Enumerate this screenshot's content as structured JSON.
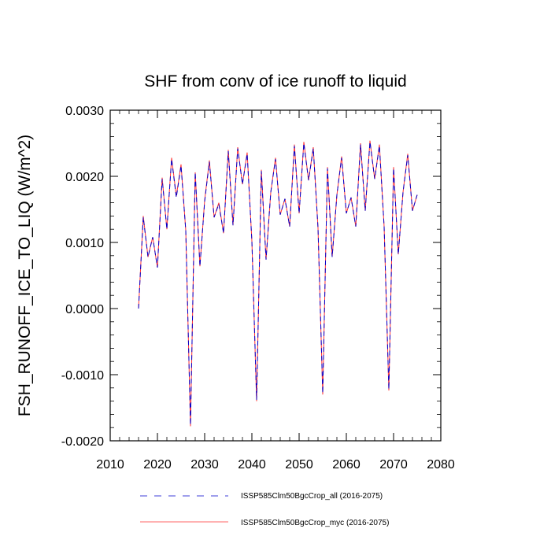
{
  "chart_data": {
    "type": "line",
    "title": "SHF from conv of ice runoff to liquid",
    "xlabel": "",
    "ylabel": "FSH_RUNOFF_ICE_TO_LIQ  (W/m^2)",
    "xlim": [
      2010,
      2080
    ],
    "ylim": [
      -0.002,
      0.003
    ],
    "x_ticks": [
      "2010",
      "2020",
      "2030",
      "2040",
      "2050",
      "2060",
      "2070",
      "2080"
    ],
    "y_ticks": [
      "-0.0020",
      "-0.0010",
      "0.0000",
      "0.0010",
      "0.0020",
      "0.0030"
    ],
    "grid": false,
    "legend_position": "bottom",
    "x": [
      2016,
      2017,
      2018,
      2019,
      2020,
      2021,
      2022,
      2023,
      2024,
      2025,
      2026,
      2027,
      2028,
      2029,
      2030,
      2031,
      2032,
      2033,
      2034,
      2035,
      2036,
      2037,
      2038,
      2039,
      2040,
      2041,
      2042,
      2043,
      2044,
      2045,
      2046,
      2047,
      2048,
      2049,
      2050,
      2051,
      2052,
      2053,
      2054,
      2055,
      2056,
      2057,
      2058,
      2059,
      2060,
      2061,
      2062,
      2063,
      2064,
      2065,
      2066,
      2067,
      2068,
      2069,
      2070,
      2071,
      2072,
      2073,
      2074,
      2075
    ],
    "series": [
      {
        "name": "ISSP585Clm50BgcCrop_all (2016-2075)",
        "color": "#0000cc",
        "dash": "dashed",
        "values": [
          0.0,
          0.00138,
          0.00078,
          0.00108,
          0.00062,
          0.00196,
          0.0012,
          0.00226,
          0.00168,
          0.00216,
          0.00118,
          -0.00176,
          0.00206,
          0.00064,
          0.00162,
          0.00222,
          0.00138,
          0.00158,
          0.00114,
          0.00238,
          0.00126,
          0.00242,
          0.00188,
          0.00234,
          0.00102,
          -0.00138,
          0.00208,
          0.00074,
          0.00176,
          0.00226,
          0.00142,
          0.00166,
          0.00124,
          0.00246,
          0.00144,
          0.0025,
          0.00194,
          0.00242,
          0.00122,
          -0.00128,
          0.00212,
          0.00078,
          0.00172,
          0.00228,
          0.00144,
          0.00168,
          0.00124,
          0.00248,
          0.00148,
          0.00252,
          0.00196,
          0.00246,
          0.00124,
          -0.00122,
          0.00212,
          0.00082,
          0.00176,
          0.00232,
          0.00148,
          0.00172
        ]
      },
      {
        "name": "ISSP585Clm50BgcCrop_myc (2016-2075)",
        "color": "#ff3333",
        "dash": "solid",
        "values": [
          0.0,
          0.0014,
          0.00078,
          0.00108,
          0.00062,
          0.00198,
          0.0012,
          0.00228,
          0.0017,
          0.00218,
          0.00118,
          -0.00178,
          0.00206,
          0.00064,
          0.00164,
          0.00224,
          0.00138,
          0.0016,
          0.00114,
          0.0024,
          0.00126,
          0.00244,
          0.00188,
          0.00236,
          0.00102,
          -0.0014,
          0.0021,
          0.00074,
          0.00176,
          0.00228,
          0.00142,
          0.00166,
          0.00124,
          0.00248,
          0.00144,
          0.00252,
          0.00194,
          0.00244,
          0.00122,
          -0.0013,
          0.00214,
          0.00078,
          0.00172,
          0.0023,
          0.00144,
          0.00168,
          0.00124,
          0.0025,
          0.00148,
          0.00254,
          0.00196,
          0.00248,
          0.00124,
          -0.00124,
          0.00214,
          0.00082,
          0.00176,
          0.00234,
          0.00148,
          0.00172
        ]
      }
    ]
  }
}
